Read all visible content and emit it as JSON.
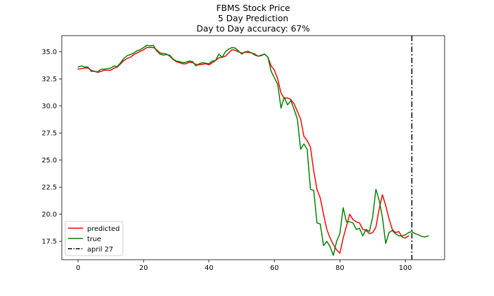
{
  "chart_data": {
    "type": "line",
    "title": [
      "FBMS Stock Price",
      "5 Day Prediction",
      "Day to Day accuracy: 67%"
    ],
    "xlabel": "",
    "ylabel": "",
    "xlim": [
      -5,
      112
    ],
    "ylim": [
      15.8,
      36.5
    ],
    "xticks": [
      0,
      20,
      40,
      60,
      80,
      100
    ],
    "yticks": [
      17.5,
      20.0,
      22.5,
      25.0,
      27.5,
      30.0,
      32.5,
      35.0
    ],
    "grid": false,
    "legend_position": "lower-left",
    "series": [
      {
        "name": "predicted",
        "color": "#ff0000",
        "x": [
          0,
          1,
          2,
          3,
          4,
          5,
          6,
          7,
          8,
          9,
          10,
          11,
          12,
          13,
          14,
          15,
          16,
          17,
          18,
          19,
          20,
          21,
          22,
          23,
          24,
          25,
          26,
          27,
          28,
          29,
          30,
          31,
          32,
          33,
          34,
          35,
          36,
          37,
          38,
          39,
          40,
          41,
          42,
          43,
          44,
          45,
          46,
          47,
          48,
          49,
          50,
          51,
          52,
          53,
          54,
          55,
          56,
          57,
          58,
          59,
          60,
          61,
          62,
          63,
          64,
          65,
          66,
          67,
          68,
          69,
          70,
          71,
          72,
          73,
          74,
          75,
          76,
          77,
          78,
          79,
          80,
          81,
          82,
          83,
          84,
          85,
          86,
          87,
          88,
          89,
          90,
          91,
          92,
          93,
          94,
          95,
          96,
          97,
          98,
          99,
          100,
          101
        ],
        "y": [
          33.4,
          33.45,
          33.5,
          33.5,
          33.3,
          33.2,
          33.1,
          33.2,
          33.3,
          33.3,
          33.3,
          33.5,
          33.6,
          33.9,
          34.2,
          34.4,
          34.5,
          34.75,
          34.9,
          35.05,
          35.2,
          35.4,
          35.4,
          35.4,
          35.2,
          34.9,
          34.85,
          34.8,
          34.6,
          34.3,
          34.1,
          34.0,
          33.9,
          33.9,
          34.05,
          34.0,
          33.85,
          33.8,
          33.85,
          33.9,
          33.8,
          34.0,
          34.2,
          34.45,
          34.5,
          34.6,
          34.9,
          35.2,
          35.15,
          35.0,
          34.9,
          34.95,
          34.95,
          34.9,
          34.8,
          34.6,
          34.65,
          34.8,
          34.5,
          33.7,
          33.3,
          32.5,
          31.2,
          30.7,
          30.75,
          30.6,
          30.2,
          29.5,
          28.8,
          27.2,
          26.8,
          26.2,
          24.0,
          22.3,
          21.5,
          20.0,
          18.6,
          17.8,
          17.2,
          16.7,
          16.4,
          17.8,
          18.9,
          20.0,
          19.5,
          19.3,
          19.2,
          18.6,
          18.5,
          18.2,
          18.3,
          18.8,
          20.5,
          21.8,
          20.8,
          19.6,
          18.6,
          18.3,
          18.4,
          17.9,
          17.8,
          18.0
        ],
        "smooth": true
      },
      {
        "name": "true",
        "color": "#008000",
        "x": [
          0,
          1,
          2,
          3,
          4,
          5,
          6,
          7,
          8,
          9,
          10,
          11,
          12,
          13,
          14,
          15,
          16,
          17,
          18,
          19,
          20,
          21,
          22,
          23,
          24,
          25,
          26,
          27,
          28,
          29,
          30,
          31,
          32,
          33,
          34,
          35,
          36,
          37,
          38,
          39,
          40,
          41,
          42,
          43,
          44,
          45,
          46,
          47,
          48,
          49,
          50,
          51,
          52,
          53,
          54,
          55,
          56,
          57,
          58,
          59,
          60,
          61,
          62,
          63,
          64,
          65,
          66,
          67,
          68,
          69,
          70,
          71,
          72,
          73,
          74,
          75,
          76,
          77,
          78,
          79,
          80,
          81,
          82,
          83,
          84,
          85,
          86,
          87,
          88,
          89,
          90,
          91,
          92,
          93,
          94,
          95,
          96,
          97,
          98,
          99,
          100,
          101,
          102,
          103,
          104,
          105,
          106,
          107
        ],
        "y": [
          33.6,
          33.7,
          33.6,
          33.6,
          33.2,
          33.2,
          33.15,
          33.4,
          33.4,
          33.45,
          33.5,
          33.7,
          33.65,
          34.0,
          34.4,
          34.65,
          34.75,
          34.9,
          35.1,
          35.2,
          35.4,
          35.6,
          35.55,
          35.6,
          35.1,
          34.8,
          34.7,
          34.75,
          34.7,
          34.35,
          34.15,
          34.1,
          34.0,
          34.05,
          34.15,
          34.1,
          33.7,
          33.9,
          34.0,
          33.95,
          33.9,
          34.15,
          34.2,
          34.8,
          34.5,
          35.0,
          35.25,
          35.4,
          35.35,
          35.1,
          34.8,
          35.0,
          35.05,
          34.9,
          34.7,
          34.6,
          34.7,
          34.8,
          34.5,
          33.2,
          32.6,
          32.0,
          29.8,
          30.8,
          30.1,
          30.5,
          29.7,
          28.8,
          26.0,
          26.5,
          26.0,
          22.3,
          22.2,
          19.2,
          19.1,
          17.1,
          17.5,
          17.0,
          16.2,
          17.5,
          18.2,
          20.6,
          19.3,
          19.3,
          19.2,
          18.6,
          18.7,
          18.0,
          18.6,
          18.4,
          19.7,
          22.3,
          21.3,
          19.7,
          17.3,
          18.3,
          18.5,
          18.2,
          18.0,
          18.0,
          18.1,
          18.3,
          18.4,
          18.2,
          18.1,
          17.95,
          17.9,
          18.0
        ],
        "smooth": false
      }
    ],
    "vline": {
      "x": 102,
      "label": "april 27",
      "color": "#000000",
      "style": "dash-dot"
    }
  }
}
